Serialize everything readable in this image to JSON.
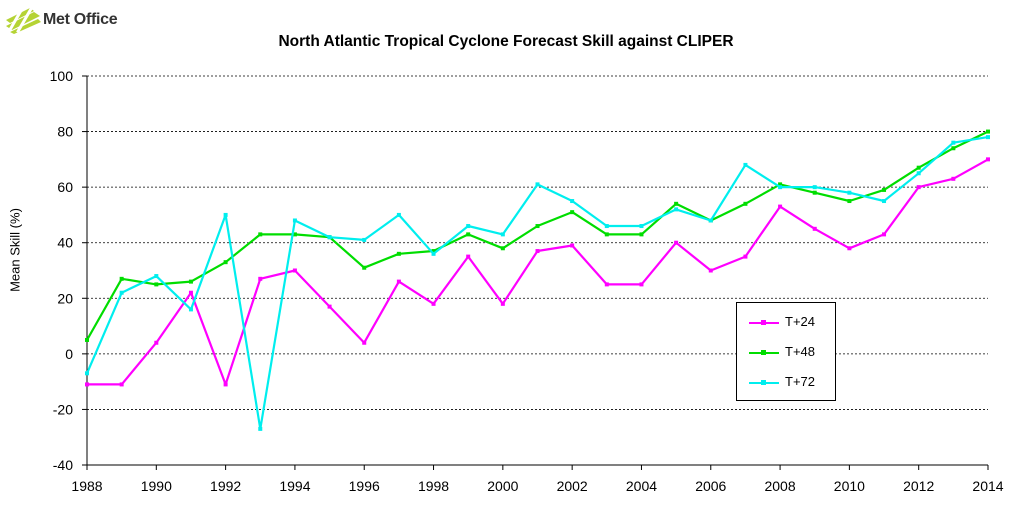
{
  "logo": {
    "text": "Met Office"
  },
  "chart_data": {
    "type": "line",
    "title": "North Atlantic Tropical Cyclone Forecast Skill against CLIPER",
    "xlabel": "",
    "ylabel": "Mean Skill (%)",
    "xlim": [
      1988,
      2014
    ],
    "ylim": [
      -40,
      100
    ],
    "x_ticks": [
      1988,
      1990,
      1992,
      1994,
      1996,
      1998,
      2000,
      2002,
      2004,
      2006,
      2008,
      2010,
      2012,
      2014
    ],
    "y_ticks": [
      -40,
      -20,
      0,
      20,
      40,
      60,
      80,
      100
    ],
    "grid": "horizontal dashed",
    "legend_position": "lower-right",
    "x": [
      1988,
      1989,
      1990,
      1991,
      1992,
      1993,
      1994,
      1995,
      1996,
      1997,
      1998,
      1999,
      2000,
      2001,
      2002,
      2003,
      2004,
      2005,
      2006,
      2007,
      2008,
      2009,
      2010,
      2011,
      2012,
      2013,
      2014
    ],
    "series": [
      {
        "name": "T+24",
        "color": "#ff00ff",
        "values": [
          -11,
          -11,
          4,
          22,
          -11,
          27,
          30,
          17,
          4,
          26,
          18,
          35,
          18,
          37,
          39,
          25,
          25,
          40,
          30,
          35,
          53,
          45,
          38,
          43,
          60,
          63,
          70
        ]
      },
      {
        "name": "T+48",
        "color": "#00dd00",
        "values": [
          5,
          27,
          25,
          26,
          33,
          43,
          43,
          42,
          31,
          36,
          37,
          43,
          38,
          46,
          51,
          43,
          43,
          54,
          48,
          54,
          61,
          58,
          55,
          59,
          67,
          74,
          80
        ]
      },
      {
        "name": "T+72",
        "color": "#00eeee",
        "values": [
          -7,
          22,
          28,
          16,
          50,
          -27,
          48,
          42,
          41,
          50,
          36,
          46,
          43,
          61,
          55,
          46,
          46,
          52,
          48,
          68,
          60,
          60,
          58,
          55,
          65,
          76,
          78
        ]
      }
    ]
  }
}
